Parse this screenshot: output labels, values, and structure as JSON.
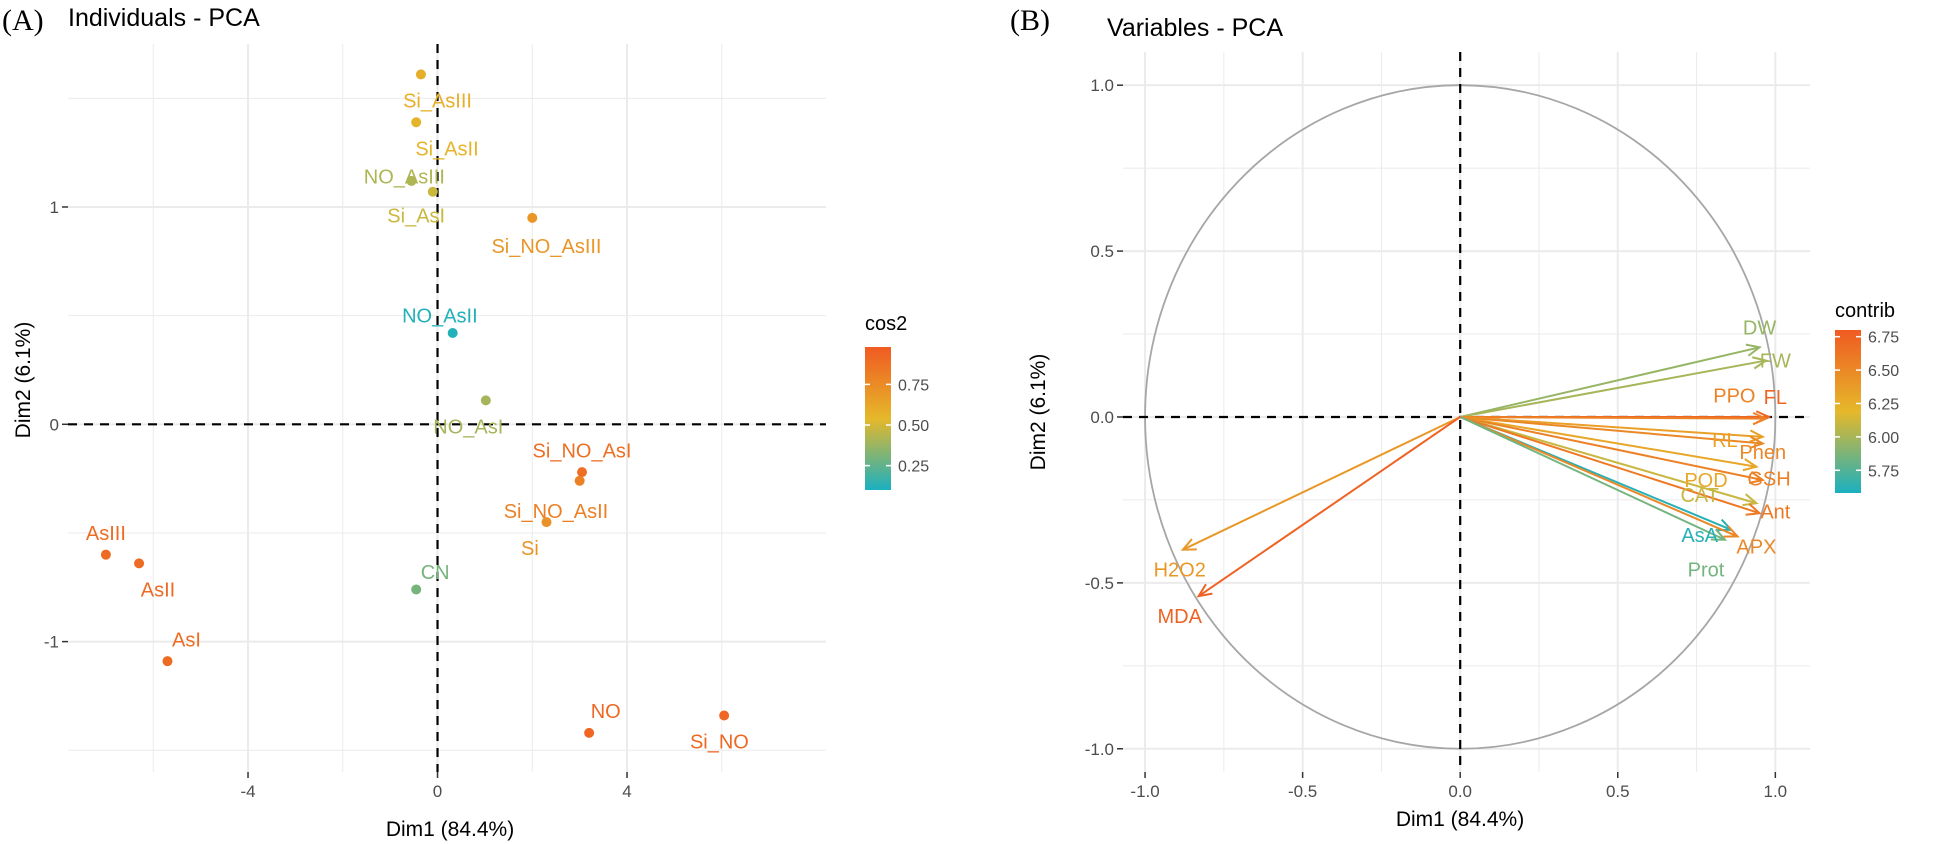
{
  "colors": {
    "low": "#1ab0c0",
    "mid": "#e6b82a",
    "high": "#f05a22",
    "grid": "#ebebeb",
    "circle": "#a6a6a6"
  },
  "chart_data": [
    {
      "panel": "(A)",
      "type": "scatter",
      "title": "Individuals - PCA",
      "xlabel": "Dim1 (84.4%)",
      "ylabel": "Dim2 (6.1%)",
      "xlim": [
        -7.8,
        8.2
      ],
      "ylim": [
        -1.6,
        1.75
      ],
      "xticks": [
        -4,
        0,
        4
      ],
      "xtick_labels": [
        "-4",
        "0",
        "4"
      ],
      "yticks": [
        -1,
        0,
        1
      ],
      "ytick_labels": [
        "-1",
        "0",
        "1"
      ],
      "legend": {
        "title": "cos2",
        "range": [
          0.1,
          0.98
        ],
        "ticks": [
          0.25,
          0.5,
          0.75
        ],
        "tick_labels": [
          "0.25",
          "0.50",
          "0.75"
        ],
        "position": "right"
      },
      "points": [
        {
          "label": "Si_AsIII",
          "x": -0.35,
          "y": 1.61,
          "cos2": 0.58,
          "lx": 0.0,
          "ly": 1.49
        },
        {
          "label": "Si_AsII",
          "x": -0.45,
          "y": 1.39,
          "cos2": 0.56,
          "lx": 0.2,
          "ly": 1.27
        },
        {
          "label": "NO_AsIII",
          "x": -0.55,
          "y": 1.12,
          "cos2": 0.42,
          "lx": -0.7,
          "ly": 1.14
        },
        {
          "label": "Si_AsI",
          "x": -0.1,
          "y": 1.07,
          "cos2": 0.48,
          "lx": -0.45,
          "ly": 0.96
        },
        {
          "label": "Si_NO_AsIII",
          "x": 2.0,
          "y": 0.95,
          "cos2": 0.7,
          "lx": 2.3,
          "ly": 0.82
        },
        {
          "label": "NO_AsII",
          "x": 0.32,
          "y": 0.42,
          "cos2": 0.12,
          "lx": 0.05,
          "ly": 0.5
        },
        {
          "label": "NO_AsI",
          "x": 1.02,
          "y": 0.11,
          "cos2": 0.4,
          "lx": 0.65,
          "ly": -0.01
        },
        {
          "label": "Si_NO_AsI",
          "x": 3.05,
          "y": -0.22,
          "cos2": 0.88,
          "lx": 3.05,
          "ly": -0.12
        },
        {
          "label": "Si_NO_AsII",
          "x": 3.0,
          "y": -0.26,
          "cos2": 0.8,
          "lx": 2.5,
          "ly": -0.4
        },
        {
          "label": "Si",
          "x": 2.3,
          "y": -0.45,
          "cos2": 0.72,
          "lx": 1.95,
          "ly": -0.57
        },
        {
          "label": "CN",
          "x": -0.45,
          "y": -0.76,
          "cos2": 0.3,
          "lx": -0.05,
          "ly": -0.68
        },
        {
          "label": "AsIII",
          "x": -7.0,
          "y": -0.6,
          "cos2": 0.9,
          "lx": -7.0,
          "ly": -0.5
        },
        {
          "label": "AsII",
          "x": -6.3,
          "y": -0.64,
          "cos2": 0.9,
          "lx": -5.9,
          "ly": -0.76
        },
        {
          "label": "AsI",
          "x": -5.7,
          "y": -1.09,
          "cos2": 0.9,
          "lx": -5.3,
          "ly": -0.99
        },
        {
          "label": "NO",
          "x": 3.2,
          "y": -1.42,
          "cos2": 0.92,
          "lx": 3.55,
          "ly": -1.32
        },
        {
          "label": "Si_NO",
          "x": 6.05,
          "y": -1.34,
          "cos2": 0.92,
          "lx": 5.95,
          "ly": -1.46
        }
      ]
    },
    {
      "panel": "(B)",
      "type": "scatter",
      "title": "Variables - PCA",
      "xlabel": "Dim1 (84.4%)",
      "ylabel": "Dim2 (6.1%)",
      "xlim": [
        -1.07,
        1.11
      ],
      "ylim": [
        -1.07,
        1.1
      ],
      "xticks": [
        -1,
        -0.5,
        0,
        0.5,
        1
      ],
      "xtick_labels": [
        "-1.0",
        "-0.5",
        "0.0",
        "0.5",
        "1.0"
      ],
      "yticks": [
        -1,
        -0.5,
        0,
        0.5,
        1
      ],
      "ytick_labels": [
        "-1.0",
        "-0.5",
        "0.0",
        "0.5",
        "1.0"
      ],
      "legend": {
        "title": "contrib",
        "range": [
          5.58,
          6.8
        ],
        "ticks": [
          5.75,
          6.0,
          6.25,
          6.5,
          6.75
        ],
        "tick_labels": [
          "5.75",
          "6.00",
          "6.25",
          "6.50",
          "6.75"
        ],
        "position": "right"
      },
      "vectors": [
        {
          "label": "DW",
          "x": 0.95,
          "y": 0.21,
          "contrib": 5.95,
          "lx": 0.95,
          "ly": 0.27
        },
        {
          "label": "FW",
          "x": 0.97,
          "y": 0.17,
          "contrib": 6.0,
          "lx": 1.0,
          "ly": 0.17
        },
        {
          "label": "FL",
          "x": 0.98,
          "y": 0.0,
          "contrib": 6.72,
          "lx": 1.0,
          "ly": 0.06
        },
        {
          "label": "PPO",
          "x": 0.97,
          "y": -0.005,
          "contrib": 6.55,
          "lx": 0.87,
          "ly": 0.065
        },
        {
          "label": "RL",
          "x": 0.96,
          "y": -0.06,
          "contrib": 6.35,
          "lx": 0.84,
          "ly": -0.07
        },
        {
          "label": "Phen",
          "x": 0.96,
          "y": -0.08,
          "contrib": 6.5,
          "lx": 0.96,
          "ly": -0.105
        },
        {
          "label": "POD",
          "x": 0.94,
          "y": -0.15,
          "contrib": 6.3,
          "lx": 0.78,
          "ly": -0.19
        },
        {
          "label": "GSH",
          "x": 0.96,
          "y": -0.19,
          "contrib": 6.55,
          "lx": 0.98,
          "ly": -0.185
        },
        {
          "label": "CAT",
          "x": 0.94,
          "y": -0.26,
          "contrib": 6.1,
          "lx": 0.76,
          "ly": -0.235
        },
        {
          "label": "Ant",
          "x": 0.95,
          "y": -0.29,
          "contrib": 6.6,
          "lx": 1.0,
          "ly": -0.285
        },
        {
          "label": "AsA",
          "x": 0.86,
          "y": -0.34,
          "contrib": 5.62,
          "lx": 0.76,
          "ly": -0.355
        },
        {
          "label": "APX",
          "x": 0.88,
          "y": -0.36,
          "contrib": 6.5,
          "lx": 0.94,
          "ly": -0.39
        },
        {
          "label": "Prot",
          "x": 0.84,
          "y": -0.37,
          "contrib": 5.85,
          "lx": 0.78,
          "ly": -0.46
        },
        {
          "label": "H2O2",
          "x": -0.88,
          "y": -0.4,
          "contrib": 6.4,
          "lx": -0.89,
          "ly": -0.46
        },
        {
          "label": "MDA",
          "x": -0.83,
          "y": -0.54,
          "contrib": 6.75,
          "lx": -0.89,
          "ly": -0.6
        }
      ]
    }
  ]
}
